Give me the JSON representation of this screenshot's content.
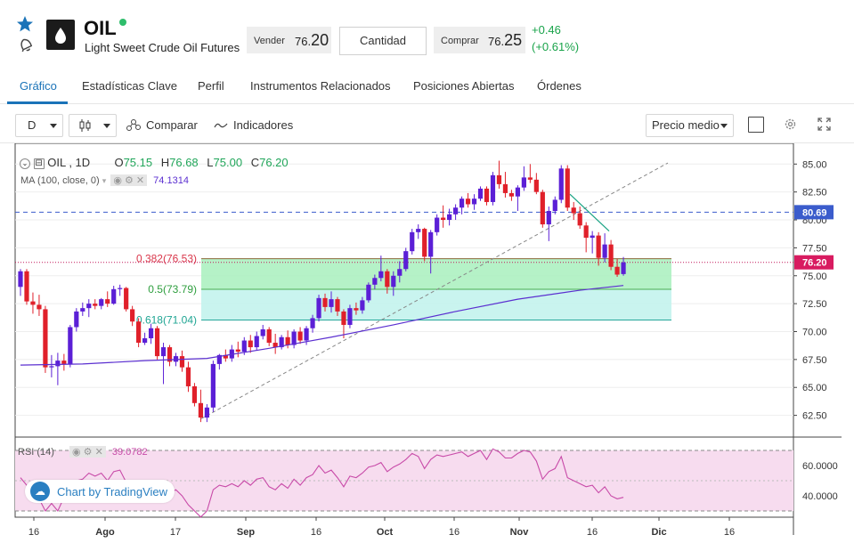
{
  "header": {
    "symbol": "OIL",
    "name": "Light Sweet Crude Oil Futures",
    "sell_label": "Vender",
    "sell_price_small": "76.",
    "sell_price_big": "20",
    "quantity_label": "Cantidad",
    "buy_label": "Comprar",
    "buy_price_small": "76.",
    "buy_price_big": "25",
    "change": "+0.46",
    "change_pct": "(+0.61%)",
    "accent_color": "#1a73b8",
    "positive_color": "#19a34a"
  },
  "tabs": [
    {
      "label": "Gráfico",
      "active": true
    },
    {
      "label": "Estadísticas Clave",
      "active": false
    },
    {
      "label": "Perfil",
      "active": false
    },
    {
      "label": "Instrumentos Relacionados",
      "active": false
    },
    {
      "label": "Posiciones Abiertas",
      "active": false
    },
    {
      "label": "Órdenes",
      "active": false
    }
  ],
  "toolbar": {
    "interval": "D",
    "compare_label": "Comparar",
    "indicators_label": "Indicadores",
    "price_type": "Precio medio"
  },
  "legend": {
    "symbol_interval": "OIL , 1D",
    "o_label": "O",
    "o_value": "75.15",
    "h_label": "H",
    "h_value": "76.68",
    "l_label": "L",
    "l_value": "75.00",
    "c_label": "C",
    "c_value": "76.20",
    "ma_label": "MA (100, close, 0)",
    "ma_value": "74.1314",
    "rsi_label": "RSI (14)",
    "rsi_value": "39.0782"
  },
  "branding": "Chart by TradingView",
  "chart_data": {
    "type": "candlestick",
    "y_ticks": [
      "85.00",
      "82.50",
      "80.00",
      "77.50",
      "75.00",
      "72.50",
      "70.00",
      "67.50",
      "65.00",
      "62.50"
    ],
    "ylim": [
      60.2,
      86.5
    ],
    "x_ticks": [
      "16",
      "Ago",
      "17",
      "Sep",
      "16",
      "Oct",
      "16",
      "Nov",
      "16",
      "Dic",
      "16"
    ],
    "price_label": "76.20",
    "line_label": "80.69",
    "fibonacci": [
      {
        "label": "0.382(76.53)",
        "value": 76.53
      },
      {
        "label": "0.5(73.79)",
        "value": 73.79
      },
      {
        "label": "0.618(71.04)",
        "value": 71.04
      }
    ],
    "rsi_ticks": [
      "60.0000",
      "40.0000"
    ],
    "rsi_ylim": [
      20,
      80
    ],
    "rsi_bands": [
      70,
      30
    ],
    "up_color": "#5b1fd6",
    "down_color": "#e0202a",
    "ma_color": "#5b2fd0",
    "rsi_color": "#c84aa8",
    "candles": [
      {
        "o": 74.0,
        "h": 75.6,
        "l": 73.2,
        "c": 75.4
      },
      {
        "o": 75.4,
        "h": 75.6,
        "l": 72.4,
        "c": 72.7
      },
      {
        "o": 72.7,
        "h": 73.5,
        "l": 71.6,
        "c": 72.4
      },
      {
        "o": 72.4,
        "h": 73.3,
        "l": 71.4,
        "c": 72.0
      },
      {
        "o": 72.0,
        "h": 72.3,
        "l": 66.3,
        "c": 66.8
      },
      {
        "o": 66.8,
        "h": 67.9,
        "l": 65.9,
        "c": 66.9
      },
      {
        "o": 66.9,
        "h": 68.1,
        "l": 65.2,
        "c": 67.4
      },
      {
        "o": 67.4,
        "h": 68.0,
        "l": 66.5,
        "c": 67.1
      },
      {
        "o": 67.1,
        "h": 70.6,
        "l": 66.8,
        "c": 70.4
      },
      {
        "o": 70.4,
        "h": 72.1,
        "l": 70.0,
        "c": 71.8
      },
      {
        "o": 71.8,
        "h": 72.6,
        "l": 71.4,
        "c": 72.1
      },
      {
        "o": 72.1,
        "h": 72.9,
        "l": 71.3,
        "c": 72.5
      },
      {
        "o": 72.5,
        "h": 72.9,
        "l": 72.0,
        "c": 72.3
      },
      {
        "o": 72.3,
        "h": 73.0,
        "l": 72.0,
        "c": 72.9
      },
      {
        "o": 72.9,
        "h": 73.6,
        "l": 72.2,
        "c": 72.5
      },
      {
        "o": 72.5,
        "h": 74.1,
        "l": 72.4,
        "c": 73.8
      },
      {
        "o": 73.8,
        "h": 74.2,
        "l": 73.2,
        "c": 73.9
      },
      {
        "o": 73.9,
        "h": 74.0,
        "l": 71.8,
        "c": 72.0
      },
      {
        "o": 72.0,
        "h": 72.3,
        "l": 70.5,
        "c": 70.9
      },
      {
        "o": 70.9,
        "h": 71.2,
        "l": 68.6,
        "c": 69.0
      },
      {
        "o": 69.0,
        "h": 69.9,
        "l": 68.8,
        "c": 69.4
      },
      {
        "o": 69.4,
        "h": 70.7,
        "l": 68.9,
        "c": 70.3
      },
      {
        "o": 70.3,
        "h": 70.5,
        "l": 67.5,
        "c": 67.8
      },
      {
        "o": 67.8,
        "h": 69.0,
        "l": 65.3,
        "c": 68.6
      },
      {
        "o": 68.6,
        "h": 68.8,
        "l": 66.9,
        "c": 67.3
      },
      {
        "o": 67.3,
        "h": 68.1,
        "l": 66.9,
        "c": 67.8
      },
      {
        "o": 67.8,
        "h": 68.3,
        "l": 66.4,
        "c": 66.8
      },
      {
        "o": 66.8,
        "h": 67.3,
        "l": 64.6,
        "c": 65.1
      },
      {
        "o": 65.1,
        "h": 65.4,
        "l": 63.3,
        "c": 63.6
      },
      {
        "o": 63.6,
        "h": 64.8,
        "l": 61.9,
        "c": 62.3
      },
      {
        "o": 62.3,
        "h": 63.5,
        "l": 61.9,
        "c": 63.2
      },
      {
        "o": 63.2,
        "h": 67.4,
        "l": 62.8,
        "c": 67.1
      },
      {
        "o": 67.1,
        "h": 68.0,
        "l": 66.6,
        "c": 67.9
      },
      {
        "o": 67.9,
        "h": 68.4,
        "l": 67.3,
        "c": 67.6
      },
      {
        "o": 67.6,
        "h": 68.8,
        "l": 67.3,
        "c": 68.4
      },
      {
        "o": 68.4,
        "h": 69.1,
        "l": 67.7,
        "c": 68.2
      },
      {
        "o": 68.2,
        "h": 69.5,
        "l": 67.9,
        "c": 69.2
      },
      {
        "o": 69.2,
        "h": 69.7,
        "l": 68.1,
        "c": 68.6
      },
      {
        "o": 68.6,
        "h": 70.0,
        "l": 68.3,
        "c": 69.6
      },
      {
        "o": 69.6,
        "h": 70.6,
        "l": 69.3,
        "c": 70.2
      },
      {
        "o": 70.2,
        "h": 70.4,
        "l": 68.7,
        "c": 69.0
      },
      {
        "o": 69.0,
        "h": 69.8,
        "l": 68.0,
        "c": 68.6
      },
      {
        "o": 68.6,
        "h": 69.7,
        "l": 68.4,
        "c": 69.5
      },
      {
        "o": 69.5,
        "h": 70.1,
        "l": 68.5,
        "c": 68.8
      },
      {
        "o": 68.8,
        "h": 70.2,
        "l": 68.5,
        "c": 70.0
      },
      {
        "o": 70.0,
        "h": 70.4,
        "l": 68.9,
        "c": 69.2
      },
      {
        "o": 69.2,
        "h": 70.5,
        "l": 68.8,
        "c": 70.3
      },
      {
        "o": 70.3,
        "h": 71.5,
        "l": 69.9,
        "c": 71.2
      },
      {
        "o": 71.2,
        "h": 73.3,
        "l": 70.9,
        "c": 73.0
      },
      {
        "o": 73.0,
        "h": 73.4,
        "l": 71.8,
        "c": 72.2
      },
      {
        "o": 72.2,
        "h": 73.6,
        "l": 71.7,
        "c": 72.9
      },
      {
        "o": 72.9,
        "h": 73.1,
        "l": 71.4,
        "c": 71.8
      },
      {
        "o": 71.8,
        "h": 72.0,
        "l": 69.4,
        "c": 70.6
      },
      {
        "o": 70.6,
        "h": 72.4,
        "l": 70.3,
        "c": 72.1
      },
      {
        "o": 72.1,
        "h": 72.6,
        "l": 71.5,
        "c": 71.9
      },
      {
        "o": 71.9,
        "h": 73.1,
        "l": 71.6,
        "c": 72.8
      },
      {
        "o": 72.8,
        "h": 74.4,
        "l": 72.6,
        "c": 74.2
      },
      {
        "o": 74.2,
        "h": 75.1,
        "l": 73.8,
        "c": 74.8
      },
      {
        "o": 74.8,
        "h": 76.8,
        "l": 74.5,
        "c": 75.4
      },
      {
        "o": 75.4,
        "h": 75.6,
        "l": 73.4,
        "c": 74.0
      },
      {
        "o": 74.0,
        "h": 75.4,
        "l": 73.2,
        "c": 75.0
      },
      {
        "o": 75.0,
        "h": 76.3,
        "l": 74.4,
        "c": 75.6
      },
      {
        "o": 75.6,
        "h": 77.5,
        "l": 75.4,
        "c": 77.2
      },
      {
        "o": 77.2,
        "h": 79.2,
        "l": 76.9,
        "c": 78.9
      },
      {
        "o": 78.9,
        "h": 79.6,
        "l": 78.3,
        "c": 79.2
      },
      {
        "o": 79.2,
        "h": 79.3,
        "l": 76.3,
        "c": 76.7
      },
      {
        "o": 76.7,
        "h": 79.1,
        "l": 75.2,
        "c": 78.9
      },
      {
        "o": 78.9,
        "h": 80.5,
        "l": 78.6,
        "c": 80.2
      },
      {
        "o": 80.2,
        "h": 81.3,
        "l": 79.3,
        "c": 80.0
      },
      {
        "o": 80.0,
        "h": 81.0,
        "l": 79.5,
        "c": 80.5
      },
      {
        "o": 80.5,
        "h": 81.4,
        "l": 80.0,
        "c": 81.1
      },
      {
        "o": 81.1,
        "h": 82.1,
        "l": 80.5,
        "c": 81.9
      },
      {
        "o": 81.9,
        "h": 82.4,
        "l": 81.1,
        "c": 81.4
      },
      {
        "o": 81.4,
        "h": 82.3,
        "l": 80.9,
        "c": 81.9
      },
      {
        "o": 81.9,
        "h": 83.0,
        "l": 81.7,
        "c": 82.8
      },
      {
        "o": 82.8,
        "h": 83.0,
        "l": 81.3,
        "c": 81.6
      },
      {
        "o": 81.6,
        "h": 84.3,
        "l": 81.3,
        "c": 84.0
      },
      {
        "o": 84.0,
        "h": 85.3,
        "l": 82.8,
        "c": 83.2
      },
      {
        "o": 83.2,
        "h": 84.3,
        "l": 82.0,
        "c": 82.4
      },
      {
        "o": 82.4,
        "h": 82.7,
        "l": 81.7,
        "c": 82.1
      },
      {
        "o": 82.1,
        "h": 83.1,
        "l": 80.8,
        "c": 82.9
      },
      {
        "o": 82.9,
        "h": 84.8,
        "l": 82.6,
        "c": 83.8
      },
      {
        "o": 83.8,
        "h": 85.0,
        "l": 83.3,
        "c": 83.6
      },
      {
        "o": 83.6,
        "h": 84.2,
        "l": 82.3,
        "c": 82.5
      },
      {
        "o": 82.5,
        "h": 82.7,
        "l": 79.3,
        "c": 79.6
      },
      {
        "o": 79.6,
        "h": 81.2,
        "l": 78.1,
        "c": 80.8
      },
      {
        "o": 80.8,
        "h": 82.1,
        "l": 80.5,
        "c": 81.8
      },
      {
        "o": 81.8,
        "h": 84.9,
        "l": 81.5,
        "c": 84.6
      },
      {
        "o": 84.6,
        "h": 84.9,
        "l": 80.8,
        "c": 81.1
      },
      {
        "o": 81.1,
        "h": 81.6,
        "l": 80.0,
        "c": 80.6
      },
      {
        "o": 80.6,
        "h": 81.2,
        "l": 79.2,
        "c": 79.5
      },
      {
        "o": 79.5,
        "h": 79.8,
        "l": 77.1,
        "c": 78.4
      },
      {
        "o": 78.4,
        "h": 79.0,
        "l": 77.0,
        "c": 78.6
      },
      {
        "o": 78.6,
        "h": 78.9,
        "l": 75.9,
        "c": 76.6
      },
      {
        "o": 76.6,
        "h": 78.8,
        "l": 76.2,
        "c": 77.8
      },
      {
        "o": 77.8,
        "h": 78.2,
        "l": 75.5,
        "c": 75.8
      },
      {
        "o": 75.8,
        "h": 76.5,
        "l": 74.9,
        "c": 75.1
      },
      {
        "o": 75.15,
        "h": 76.68,
        "l": 75.0,
        "c": 76.2
      }
    ],
    "ma": [
      [
        0,
        67.0
      ],
      [
        10,
        67.1
      ],
      [
        20,
        67.4
      ],
      [
        25,
        67.5
      ],
      [
        30,
        67.6
      ],
      [
        40,
        68.5
      ],
      [
        50,
        69.5
      ],
      [
        60,
        70.6
      ],
      [
        70,
        71.8
      ],
      [
        80,
        72.9
      ],
      [
        90,
        73.7
      ],
      [
        97,
        74.13
      ]
    ],
    "rsi": [
      [
        0,
        52
      ],
      [
        1,
        47
      ],
      [
        2,
        44
      ],
      [
        3,
        38
      ],
      [
        4,
        30
      ],
      [
        5,
        35
      ],
      [
        6,
        30
      ],
      [
        7,
        39
      ],
      [
        8,
        45
      ],
      [
        9,
        50
      ],
      [
        10,
        51
      ],
      [
        11,
        55
      ],
      [
        12,
        53
      ],
      [
        13,
        55
      ],
      [
        14,
        50
      ],
      [
        15,
        56
      ],
      [
        16,
        57
      ],
      [
        17,
        49
      ],
      [
        18,
        45
      ],
      [
        19,
        40
      ],
      [
        20,
        42
      ],
      [
        21,
        47
      ],
      [
        22,
        40
      ],
      [
        23,
        45
      ],
      [
        24,
        42
      ],
      [
        25,
        44
      ],
      [
        26,
        40
      ],
      [
        27,
        34
      ],
      [
        28,
        30
      ],
      [
        29,
        26
      ],
      [
        30,
        30
      ],
      [
        31,
        44
      ],
      [
        32,
        47
      ],
      [
        33,
        46
      ],
      [
        34,
        48
      ],
      [
        35,
        46
      ],
      [
        36,
        50
      ],
      [
        37,
        47
      ],
      [
        38,
        51
      ],
      [
        39,
        52
      ],
      [
        40,
        46
      ],
      [
        41,
        44
      ],
      [
        42,
        48
      ],
      [
        43,
        45
      ],
      [
        44,
        51
      ],
      [
        45,
        47
      ],
      [
        46,
        52
      ],
      [
        47,
        54
      ],
      [
        48,
        60
      ],
      [
        49,
        55
      ],
      [
        50,
        57
      ],
      [
        51,
        52
      ],
      [
        52,
        46
      ],
      [
        53,
        53
      ],
      [
        54,
        52
      ],
      [
        55,
        55
      ],
      [
        56,
        59
      ],
      [
        57,
        60
      ],
      [
        58,
        62
      ],
      [
        59,
        56
      ],
      [
        60,
        59
      ],
      [
        61,
        61
      ],
      [
        62,
        64
      ],
      [
        63,
        68
      ],
      [
        64,
        66
      ],
      [
        65,
        58
      ],
      [
        66,
        64
      ],
      [
        67,
        67
      ],
      [
        68,
        66
      ],
      [
        69,
        67
      ],
      [
        70,
        68
      ],
      [
        71,
        69
      ],
      [
        72,
        66
      ],
      [
        73,
        68
      ],
      [
        74,
        70
      ],
      [
        75,
        64
      ],
      [
        76,
        71
      ],
      [
        77,
        69
      ],
      [
        78,
        65
      ],
      [
        79,
        65
      ],
      [
        80,
        68
      ],
      [
        81,
        70
      ],
      [
        82,
        69
      ],
      [
        83,
        63
      ],
      [
        84,
        51
      ],
      [
        85,
        56
      ],
      [
        86,
        58
      ],
      [
        87,
        66
      ],
      [
        88,
        52
      ],
      [
        89,
        50
      ],
      [
        90,
        48
      ],
      [
        91,
        46
      ],
      [
        92,
        47
      ],
      [
        93,
        42
      ],
      [
        94,
        46
      ],
      [
        95,
        40
      ],
      [
        96,
        38
      ],
      [
        97,
        39
      ]
    ]
  }
}
